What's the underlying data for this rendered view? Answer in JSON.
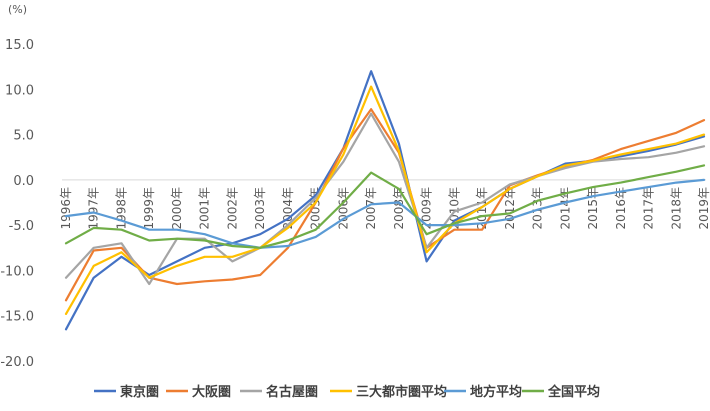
{
  "chart_data": {
    "type": "line",
    "unit_label": "(%)",
    "title": "",
    "xlabel": "",
    "ylabel": "",
    "ylim": [
      -20,
      15
    ],
    "y_ticks": [
      "15.0",
      "10.0",
      "5.0",
      "0.0",
      "-5.0",
      "-10.0",
      "-15.0",
      "-20.0"
    ],
    "y_tick_values": [
      15,
      10,
      5,
      0,
      -5,
      -10,
      -15,
      -20
    ],
    "grid": false,
    "legend_position": "bottom",
    "categories": [
      "1996年",
      "1997年",
      "1998年",
      "1999年",
      "2000年",
      "2001年",
      "2002年",
      "2003年",
      "2004年",
      "2005年",
      "2006年",
      "2007年",
      "2008年",
      "2009年",
      "2010年",
      "2011年",
      "2012年",
      "2013年",
      "2014年",
      "2015年",
      "2016年",
      "2017年",
      "2018年",
      "2019年"
    ],
    "series": [
      {
        "name": "東京圏",
        "color": "#4472c4",
        "values": [
          -16.5,
          -10.8,
          -8.5,
          -10.5,
          -9.0,
          -7.5,
          -7.0,
          -6.0,
          -4.3,
          -1.7,
          3.5,
          12.0,
          4.0,
          -9.0,
          -4.5,
          -3.0,
          -1.0,
          0.4,
          1.8,
          2.1,
          2.6,
          3.2,
          3.9,
          4.8
        ]
      },
      {
        "name": "大阪圏",
        "color": "#ed7d31",
        "values": [
          -13.3,
          -7.8,
          -7.5,
          -10.8,
          -11.5,
          -11.2,
          -11.0,
          -10.5,
          -7.5,
          -2.5,
          3.5,
          7.8,
          3.0,
          -7.5,
          -5.5,
          -5.5,
          -0.6,
          0.5,
          1.5,
          2.2,
          3.4,
          4.3,
          5.2,
          6.6
        ]
      },
      {
        "name": "名古屋圏",
        "color": "#a5a5a5",
        "values": [
          -10.8,
          -7.5,
          -7.0,
          -11.5,
          -6.5,
          -6.5,
          -9.0,
          -7.5,
          -5.0,
          -2.0,
          2.0,
          7.3,
          2.0,
          -7.5,
          -3.5,
          -2.5,
          -0.5,
          0.4,
          1.3,
          2.0,
          2.3,
          2.5,
          3.0,
          3.7
        ]
      },
      {
        "name": "三大都市圏平均",
        "color": "#ffc000",
        "values": [
          -14.8,
          -9.5,
          -8.0,
          -10.8,
          -9.5,
          -8.5,
          -8.5,
          -7.5,
          -5.3,
          -2.5,
          2.8,
          10.3,
          3.2,
          -8.0,
          -4.8,
          -3.0,
          -1.0,
          0.4,
          1.6,
          2.1,
          2.8,
          3.4,
          4.0,
          5.0
        ]
      },
      {
        "name": "地方平均",
        "color": "#5b9bd5",
        "values": [
          -4.0,
          -3.6,
          -4.5,
          -5.5,
          -5.5,
          -6.0,
          -7.0,
          -7.5,
          -7.3,
          -6.3,
          -4.3,
          -2.7,
          -2.5,
          -5.0,
          -5.0,
          -4.8,
          -4.3,
          -3.3,
          -2.5,
          -1.8,
          -1.3,
          -0.8,
          -0.3,
          0.0
        ]
      },
      {
        "name": "全国平均",
        "color": "#70ad47",
        "values": [
          -7.0,
          -5.3,
          -5.5,
          -6.7,
          -6.5,
          -6.7,
          -7.3,
          -7.5,
          -6.7,
          -5.5,
          -2.5,
          0.8,
          -1.0,
          -6.0,
          -4.8,
          -4.0,
          -3.7,
          -2.3,
          -1.5,
          -0.8,
          -0.3,
          0.3,
          0.9,
          1.6
        ]
      }
    ]
  }
}
